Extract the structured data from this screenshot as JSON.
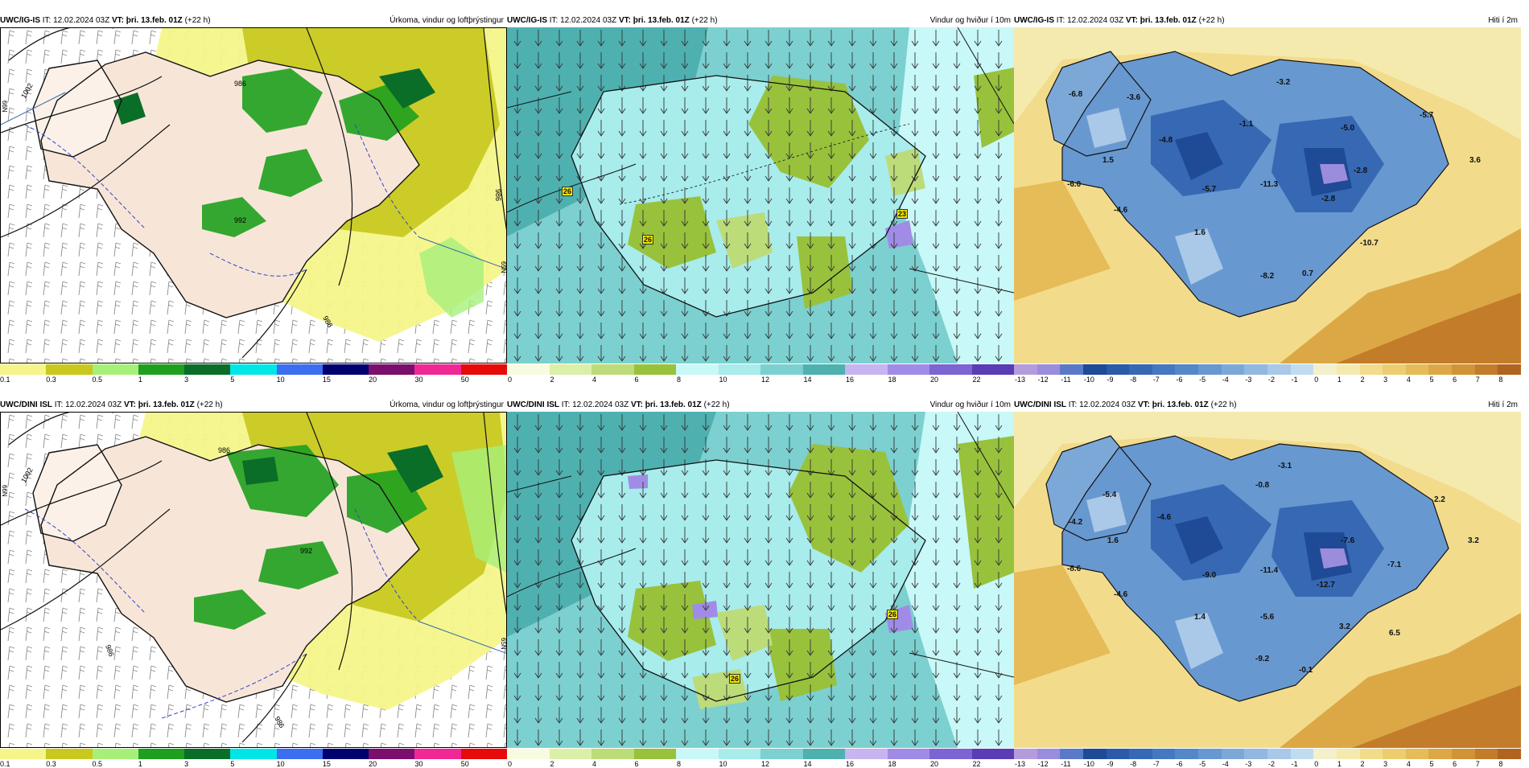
{
  "issue_time": "12.02.2024 03Z",
  "valid_time": "þri. 13.feb. 01Z",
  "lead": "(+22 h)",
  "it_prefix": "IT:",
  "vt_prefix": "VT:",
  "rows": [
    {
      "model": "UWC/IG-IS"
    },
    {
      "model": "UWC/DINI ISL"
    }
  ],
  "titles": {
    "precip": "Úrkoma, vindur og loftþrýstingur",
    "wind": "Vindur og hviður í 10m",
    "temp": "Hiti í 2m"
  },
  "colorbars": {
    "precip": {
      "labels": [
        "0.1",
        "0.3",
        "0.5",
        "1",
        "3",
        "5",
        "10",
        "15",
        "20",
        "30",
        "50"
      ],
      "colors": [
        "#f5f58a",
        "#c8c81e",
        "#a6f07a",
        "#1ea01e",
        "#0a6e28",
        "#00e6e6",
        "#3c6ef0",
        "#00006e",
        "#7a0f6e",
        "#f02896",
        "#e60a0a"
      ]
    },
    "wind": {
      "labels": [
        "0",
        "2",
        "4",
        "6",
        "8",
        "10",
        "12",
        "14",
        "16",
        "18",
        "20",
        "22"
      ],
      "colors": [
        "#f7fbe0",
        "#dcefa8",
        "#bcdc7a",
        "#98c23c",
        "#c8f8f8",
        "#a8ecec",
        "#7cd0d0",
        "#4fb0b0",
        "#c8b4f0",
        "#a08ce6",
        "#7c64d2",
        "#5a3cb4"
      ]
    },
    "temp": {
      "labels": [
        "-13",
        "-12",
        "-11",
        "-10",
        "-9",
        "-8",
        "-7",
        "-6",
        "-5",
        "-4",
        "-3",
        "-2",
        "-1",
        "0",
        "1",
        "2",
        "3",
        "4",
        "5",
        "6",
        "7",
        "8"
      ],
      "colors": [
        "#b49cdc",
        "#9c8cdc",
        "#5a7ac8",
        "#1e4a96",
        "#2a5aa8",
        "#3668b4",
        "#4478c0",
        "#5488c8",
        "#6898d0",
        "#7ca8d8",
        "#92b8e0",
        "#aac8e8",
        "#c2dcef",
        "#f3f0cc",
        "#f5eaae",
        "#f2dc8c",
        "#ecce70",
        "#e6bc58",
        "#dca846",
        "#d09436",
        "#c27c2a",
        "#b06420"
      ]
    }
  },
  "temp_values": {
    "top": [
      "-6.8",
      "-3.6",
      "-3.2",
      "-5.7",
      "-1.1",
      "-5.0",
      "-4.8",
      "3.6",
      "1.5",
      "-2.8",
      "-6.0",
      "-5.7",
      "-11.3",
      "-2.8",
      "-4.6",
      "1.6",
      "-10.7",
      "-8.2",
      "0.7"
    ],
    "bottom": [
      "-5.4",
      "-3.1",
      "-0.8",
      "2.2",
      "-4.2",
      "-4.6",
      "1.6",
      "-7.6",
      "3.2",
      "-8.6",
      "-7.1",
      "-9.0",
      "-11.4",
      "-12.7",
      "-4.6",
      "1.4",
      "-5.6",
      "3.2",
      "6.5",
      "-9.2",
      "-0.1"
    ]
  },
  "gust_values": {
    "top": [
      "26",
      "26",
      "23"
    ],
    "bottom": [
      "26",
      "26"
    ]
  },
  "isobar_labels": {
    "top": [
      "1002",
      "986",
      "986",
      "992",
      "986"
    ],
    "bottom": [
      "1002",
      "986",
      "992",
      "986",
      "986"
    ]
  },
  "lat_labels": {
    "a": "66N",
    "b": "64N",
    "c": "65N"
  }
}
